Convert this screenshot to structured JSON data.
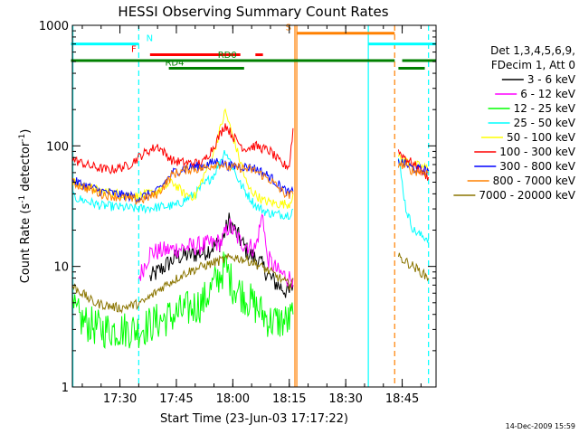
{
  "chart_data": {
    "type": "line",
    "title": "HESSI Observing Summary Count Rates",
    "xlabel": "Start Time (23-Jun-03 17:17:22)",
    "ylabel_prefix": "Count Rate (s",
    "ylabel_sup": "-1",
    "ylabel_mid": " detector",
    "ylabel_suffix": ")",
    "y_scale": "log",
    "ylim": [
      1,
      1000
    ],
    "xlim": [
      "17:17:22",
      "18:54:00"
    ],
    "y_ticks": [
      {
        "value": 1,
        "label": "1"
      },
      {
        "value": 10,
        "label": "10"
      },
      {
        "value": 100,
        "label": "100"
      },
      {
        "value": 1000,
        "label": "1000"
      }
    ],
    "x_ticks": [
      {
        "time": "17:30",
        "label": "17:30"
      },
      {
        "time": "17:45",
        "label": "17:45"
      },
      {
        "time": "18:00",
        "label": "18:00"
      },
      {
        "time": "18:15",
        "label": "18:15"
      },
      {
        "time": "18:30",
        "label": "18:30"
      },
      {
        "time": "18:45",
        "label": "18:45"
      }
    ],
    "legend_position": "right",
    "legend_header": [
      "Det 1,3,4,5,6,9,",
      "FDecim 1, Att 0"
    ],
    "series": [
      {
        "name": "3 - 6 keV",
        "color": "#000000",
        "x": [
          "17:17",
          "17:35",
          "17:38",
          "17:45",
          "17:52",
          "17:57",
          "17:59",
          "18:04",
          "18:07",
          "18:10",
          "18:12",
          "18:15",
          "18:16"
        ],
        "values": [
          null,
          null,
          8,
          12,
          13,
          16,
          24,
          13,
          11,
          8,
          7,
          6,
          7
        ]
      },
      {
        "name": "6 - 12 keV",
        "color": "#ff00ff",
        "x": [
          "17:35",
          "17:38",
          "17:45",
          "17:52",
          "17:57",
          "17:59",
          "18:02",
          "18:06",
          "18:08",
          "18:09",
          "18:12",
          "18:15",
          "18:16"
        ],
        "values": [
          8,
          13,
          14,
          15,
          16,
          22,
          16,
          14,
          28,
          12,
          9,
          8,
          8
        ]
      },
      {
        "name": "12 - 25 keV",
        "color": "#00ff00",
        "x": [
          "17:17",
          "17:20",
          "17:25",
          "17:35",
          "17:40",
          "17:45",
          "17:52",
          "17:58",
          "18:00",
          "18:05",
          "18:10",
          "18:15",
          "18:16"
        ],
        "values": [
          4.5,
          3.5,
          3,
          3,
          3.5,
          4,
          5,
          10,
          7,
          5,
          3.5,
          3.5,
          4
        ]
      },
      {
        "name": "25 - 50 keV",
        "color": "#00ffff",
        "x": [
          "17:17",
          "17:25",
          "17:35",
          "17:40",
          "17:45",
          "17:50",
          "17:55",
          "17:58",
          "18:02",
          "18:06",
          "18:09",
          "18:12",
          "18:15",
          "18:16",
          "18:44",
          "18:46",
          "18:48",
          "18:50",
          "18:52"
        ],
        "values": [
          38,
          32,
          30,
          31,
          32,
          40,
          58,
          92,
          48,
          32,
          28,
          27,
          27,
          30,
          80,
          30,
          20,
          18,
          17
        ]
      },
      {
        "name": "50 - 100 keV",
        "color": "#ffff00",
        "x": [
          "17:17",
          "17:25",
          "17:35",
          "17:40",
          "17:44",
          "17:47",
          "17:50",
          "17:55",
          "17:58",
          "18:00",
          "18:04",
          "18:08",
          "18:12",
          "18:15",
          "18:16",
          "18:44",
          "18:48",
          "18:52"
        ],
        "values": [
          50,
          42,
          38,
          42,
          50,
          40,
          38,
          90,
          195,
          120,
          45,
          35,
          33,
          33,
          40,
          80,
          70,
          65
        ]
      },
      {
        "name": "100 - 300 keV",
        "color": "#ff0000",
        "x": [
          "17:17",
          "17:22",
          "17:27",
          "17:32",
          "17:36",
          "17:40",
          "17:44",
          "17:48",
          "17:52",
          "17:55",
          "17:58",
          "18:00",
          "18:03",
          "18:06",
          "18:10",
          "18:13",
          "18:15",
          "18:16",
          "18:44",
          "18:48",
          "18:52"
        ],
        "values": [
          78,
          68,
          63,
          68,
          85,
          100,
          75,
          72,
          72,
          100,
          150,
          120,
          95,
          100,
          90,
          70,
          68,
          140,
          90,
          70,
          55
        ]
      },
      {
        "name": "300 - 800 keV",
        "color": "#0000ff",
        "x": [
          "17:17",
          "17:25",
          "17:35",
          "17:40",
          "17:44",
          "17:48",
          "17:52",
          "17:56",
          "17:59",
          "18:02",
          "18:06",
          "18:10",
          "18:13",
          "18:15",
          "18:16",
          "18:44",
          "18:48",
          "18:52"
        ],
        "values": [
          52,
          42,
          37,
          42,
          60,
          66,
          68,
          75,
          68,
          68,
          65,
          55,
          45,
          40,
          42,
          75,
          65,
          62
        ]
      },
      {
        "name": "800 - 7000 keV",
        "color": "#ff8000",
        "x": [
          "17:17",
          "17:25",
          "17:35",
          "17:40",
          "17:44",
          "17:48",
          "17:52",
          "17:56",
          "17:59",
          "18:02",
          "18:06",
          "18:10",
          "18:13",
          "18:15",
          "18:16",
          "18:44",
          "18:48",
          "18:52"
        ],
        "values": [
          50,
          40,
          35,
          40,
          58,
          64,
          65,
          72,
          66,
          66,
          62,
          52,
          42,
          38,
          40,
          72,
          62,
          60
        ]
      },
      {
        "name": "7000 - 20000 keV",
        "color": "#8b7500",
        "x": [
          "17:17",
          "17:20",
          "17:23",
          "17:30",
          "17:36",
          "17:42",
          "17:48",
          "17:52",
          "17:56",
          "18:00",
          "18:05",
          "18:10",
          "18:15",
          "18:16",
          "18:44",
          "18:48",
          "18:52"
        ],
        "values": [
          7,
          6,
          5,
          4.5,
          5,
          7,
          9,
          10,
          11,
          12,
          11,
          9,
          7,
          8,
          12,
          10,
          8
        ]
      }
    ],
    "flag_bars": [
      {
        "label": "N",
        "color": "#00ffff",
        "y": 700,
        "segments": [
          [
            "17:17",
            "17:35"
          ],
          [
            "18:36",
            "18:54"
          ]
        ],
        "label_at": "17:37"
      },
      {
        "label": "F",
        "color": "#ff0000",
        "y": 570,
        "segments": [
          [
            "17:38",
            "18:02"
          ],
          [
            "18:06",
            "18:08"
          ]
        ],
        "label_at": "17:33"
      },
      {
        "label": "S",
        "color": "#ff8000",
        "y": 860,
        "segments": [
          [
            "18:17",
            "18:43"
          ]
        ],
        "label_at": "18:14"
      },
      {
        "label": "RD0",
        "color": "#008000",
        "y": 510,
        "segments": [
          [
            "17:17",
            "18:43"
          ],
          [
            "18:45",
            "18:54"
          ]
        ],
        "label_at": "17:56"
      },
      {
        "label": "RD4",
        "color": "#008000",
        "y": 440,
        "segments": [
          [
            "17:43",
            "18:03"
          ],
          [
            "18:44",
            "18:51"
          ]
        ],
        "label_at": "17:42"
      }
    ],
    "vlines": [
      {
        "time": "17:17:30",
        "color": "#00ffff",
        "style": "solid"
      },
      {
        "time": "17:35",
        "color": "#00ffff",
        "style": "dashed"
      },
      {
        "time": "18:16:30",
        "color": "#ff8000",
        "style": "solid"
      },
      {
        "time": "18:17",
        "color": "#ff8000",
        "style": "solid"
      },
      {
        "time": "18:36",
        "color": "#00ffff",
        "style": "solid"
      },
      {
        "time": "18:43",
        "color": "#ff8000",
        "style": "dashed"
      },
      {
        "time": "18:52",
        "color": "#00ffff",
        "style": "dashed"
      }
    ]
  },
  "footer": {
    "timestamp": "14-Dec-2009 15:59"
  }
}
